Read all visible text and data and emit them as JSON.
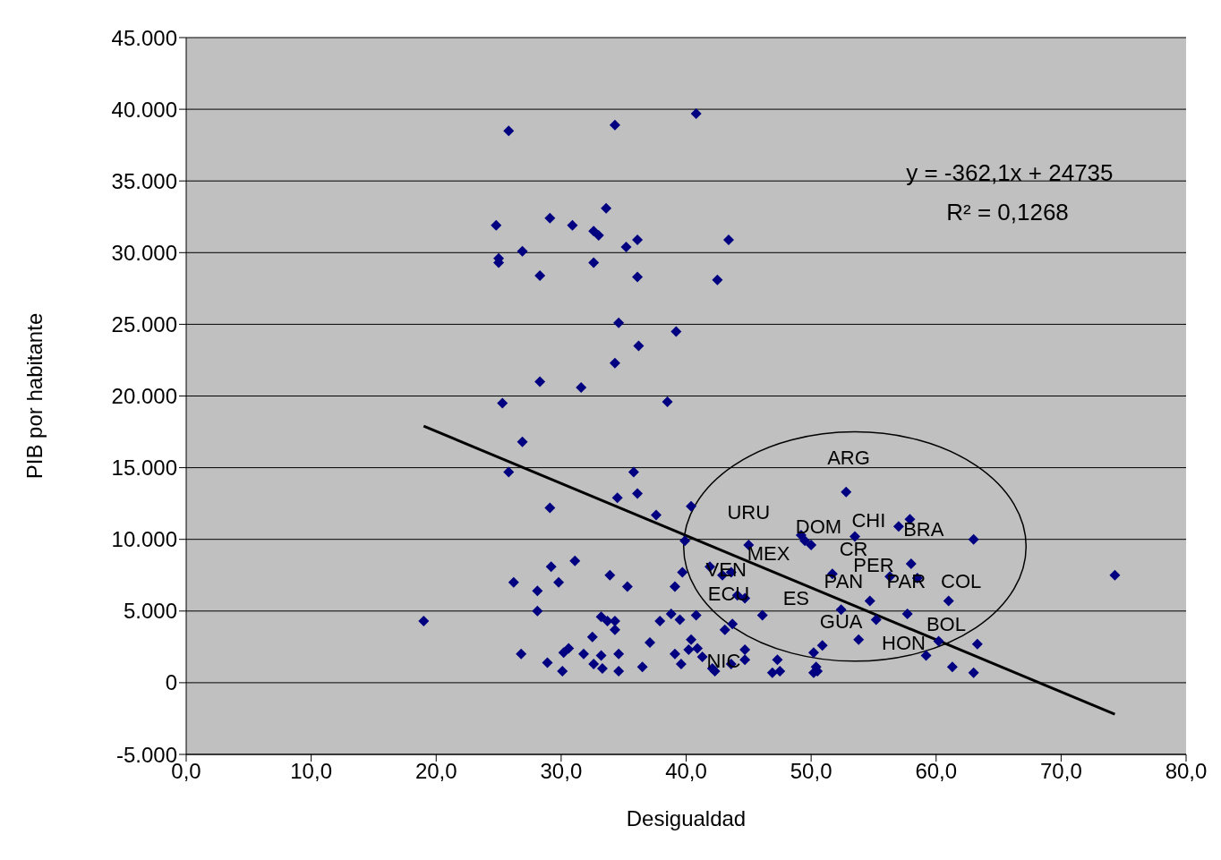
{
  "chart_data": {
    "type": "scatter",
    "xlabel": "Desigualdad",
    "ylabel": "PIB por habitante",
    "xlim": [
      0,
      80
    ],
    "xticks": [
      {
        "value": 0,
        "label": "0,0"
      },
      {
        "value": 10,
        "label": "10,0"
      },
      {
        "value": 20,
        "label": "20,0"
      },
      {
        "value": 30,
        "label": "30,0"
      },
      {
        "value": 40,
        "label": "40,0"
      },
      {
        "value": 50,
        "label": "50,0"
      },
      {
        "value": 60,
        "label": "60,0"
      },
      {
        "value": 70,
        "label": "70,0"
      },
      {
        "value": 80,
        "label": "80,0"
      }
    ],
    "ylim": [
      -5000,
      45000
    ],
    "yticks": [
      {
        "value": -5000,
        "label": "-5.000"
      },
      0,
      {
        "value": 5000,
        "label": "5.000"
      },
      {
        "value": 10000,
        "label": "10.000"
      },
      {
        "value": 15000,
        "label": "15.000"
      },
      {
        "value": 20000,
        "label": "20.000"
      },
      {
        "value": 25000,
        "label": "25.000"
      },
      {
        "value": 30000,
        "label": "30.000"
      },
      {
        "value": 35000,
        "label": "35.000"
      },
      {
        "value": 40000,
        "label": "40.000"
      },
      {
        "value": 45000,
        "label": "45.000"
      }
    ],
    "grid": "y",
    "marker": "diamond",
    "series": [
      {
        "color": "#000080",
        "x": [
          25.8,
          34.3,
          40.8,
          24.8,
          29.1,
          33.6,
          30.9,
          32.6,
          33.0,
          36.1,
          35.2,
          43.4,
          25.0,
          25.0,
          26.9,
          28.3,
          32.6,
          36.1,
          42.5,
          34.6,
          39.2,
          36.2,
          34.3,
          28.3,
          31.6,
          25.3,
          38.5,
          26.9,
          25.8,
          35.8,
          34.5,
          36.1,
          29.1,
          37.6,
          40.4,
          39.9,
          19.0,
          26.2,
          28.1,
          28.1,
          29.2,
          29.8,
          31.1,
          33.9,
          35.3,
          26.8,
          28.9,
          30.1,
          30.2,
          30.6,
          31.8,
          32.5,
          33.2,
          33.7,
          34.3,
          34.3,
          32.6,
          33.2,
          33.3,
          34.6,
          34.6,
          36.5,
          37.1,
          37.9,
          38.8,
          39.5,
          40.8,
          39.1,
          39.6,
          40.4,
          40.2,
          40.9,
          41.3,
          42.3,
          43.1,
          43.7,
          44.7,
          44.7,
          46.1,
          43.6,
          39.1,
          39.7,
          41.9,
          42.9,
          43.6,
          44.1,
          44.7,
          45.0,
          52.8,
          49.2,
          49.5,
          50.0,
          53.5,
          57.0,
          57.9,
          63.0,
          51.7,
          56.3,
          58.0,
          58.5,
          54.7,
          52.4,
          55.2,
          57.7,
          61.0,
          53.8,
          50.9,
          50.2,
          60.2,
          63.3,
          59.2,
          61.3,
          63.0,
          47.3,
          46.9,
          47.5,
          50.4,
          50.2,
          50.5,
          42.1,
          74.3
        ],
        "values": [
          38500,
          38900,
          39700,
          31900,
          32400,
          33100,
          31900,
          31500,
          31200,
          30900,
          30400,
          30900,
          29600,
          29300,
          30100,
          28400,
          29300,
          28300,
          28100,
          25100,
          24500,
          23500,
          22300,
          21000,
          20600,
          19500,
          19600,
          16800,
          14700,
          14700,
          12900,
          13200,
          12200,
          11700,
          12300,
          9900,
          4300,
          7000,
          6400,
          5000,
          8100,
          7000,
          8500,
          7500,
          6700,
          2000,
          1400,
          800,
          2100,
          2400,
          2000,
          3200,
          4600,
          4300,
          4300,
          3700,
          1300,
          1900,
          1000,
          2000,
          800,
          1100,
          2800,
          4300,
          4800,
          4400,
          4700,
          2000,
          1300,
          3000,
          2300,
          2400,
          1800,
          800,
          3700,
          4100,
          2300,
          1600,
          4700,
          1300,
          6700,
          7700,
          8100,
          7500,
          7700,
          6100,
          5900,
          9600,
          13300,
          10300,
          9900,
          9600,
          10200,
          10900,
          11400,
          10000,
          7600,
          7400,
          8300,
          7300,
          5700,
          5100,
          4400,
          4800,
          5700,
          3000,
          2600,
          2100,
          2900,
          2700,
          1900,
          1100,
          700,
          1600,
          700,
          800,
          1100,
          700,
          800,
          1000,
          7500
        ]
      },
      {
        "type": "line",
        "color": "#000000",
        "marker": "none",
        "x": [
          19.0,
          74.3
        ],
        "values": [
          17900,
          -2200
        ]
      }
    ],
    "annotations": [
      "y = -362,1x + 24735",
      "R² = 0,1268",
      "ARG",
      "URU",
      "MEX",
      "DOM",
      "CHI",
      "BRA",
      "CR",
      "PER",
      "PAN",
      "PAR",
      "COL",
      "VEN",
      "ECU",
      "ES",
      "GUA",
      "BOL",
      "HON",
      "NIC"
    ]
  }
}
